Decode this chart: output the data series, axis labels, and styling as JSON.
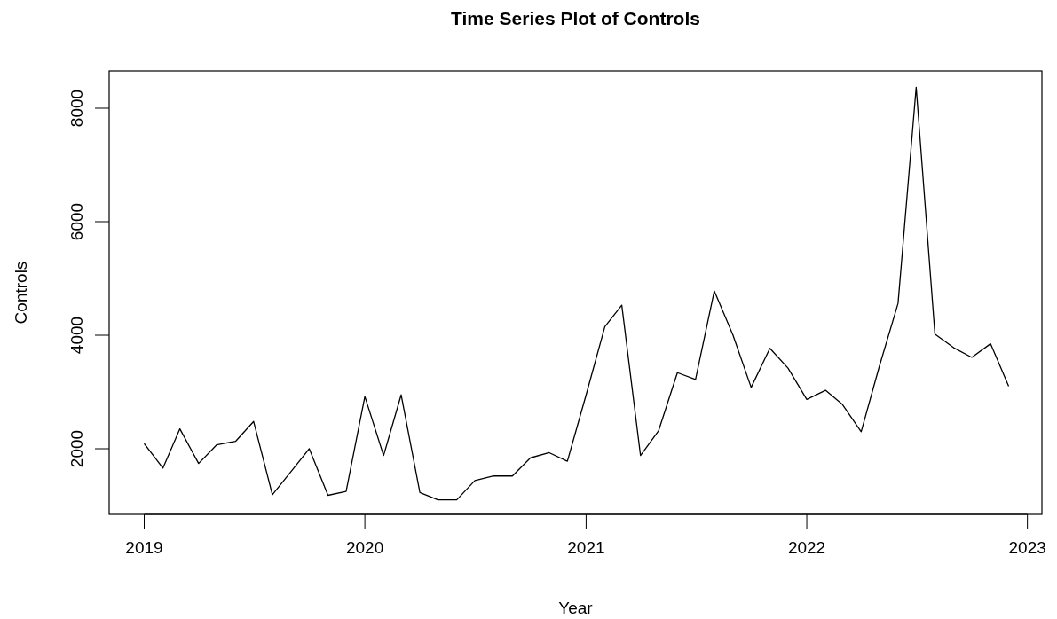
{
  "chart_data": {
    "type": "line",
    "title": "Time Series Plot of Controls",
    "xlabel": "Year",
    "ylabel": "Controls",
    "x": [
      "2019-01",
      "2019-02",
      "2019-03",
      "2019-04",
      "2019-05",
      "2019-06",
      "2019-07",
      "2019-08",
      "2019-09",
      "2019-10",
      "2019-11",
      "2019-12",
      "2020-01",
      "2020-02",
      "2020-03",
      "2020-04",
      "2020-05",
      "2020-06",
      "2020-07",
      "2020-08",
      "2020-09",
      "2020-10",
      "2020-11",
      "2020-12",
      "2021-01",
      "2021-02",
      "2021-03",
      "2021-04",
      "2021-05",
      "2021-06",
      "2021-07",
      "2021-08",
      "2021-09",
      "2021-10",
      "2021-11",
      "2021-12",
      "2022-01",
      "2022-02",
      "2022-03",
      "2022-04",
      "2022-05",
      "2022-06",
      "2022-07",
      "2022-08",
      "2022-09",
      "2022-10",
      "2022-11",
      "2022-12"
    ],
    "series": [
      {
        "color": "#000000",
        "values": [
          2090,
          1660,
          2350,
          1740,
          2070,
          2130,
          2480,
          1190,
          1600,
          2000,
          1180,
          1250,
          2920,
          1880,
          2950,
          1230,
          1100,
          1100,
          1440,
          1520,
          1520,
          1840,
          1930,
          1780,
          2950,
          4150,
          4530,
          1880,
          2320,
          3340,
          3220,
          4780,
          4000,
          3080,
          3770,
          3420,
          2870,
          3030,
          2780,
          2300,
          3450,
          4560,
          8370,
          4020,
          3780,
          3610,
          3850,
          3100
        ]
      }
    ],
    "xlim": [
      "2018-11-04",
      "2023-01-25"
    ],
    "xticks": [
      "2019",
      "2020",
      "2021",
      "2022",
      "2023"
    ],
    "ylim": [
      844,
      8656
    ],
    "yticks": [
      2000,
      4000,
      6000,
      8000
    ],
    "grid": false,
    "marker": "none",
    "line_style": "solid"
  }
}
